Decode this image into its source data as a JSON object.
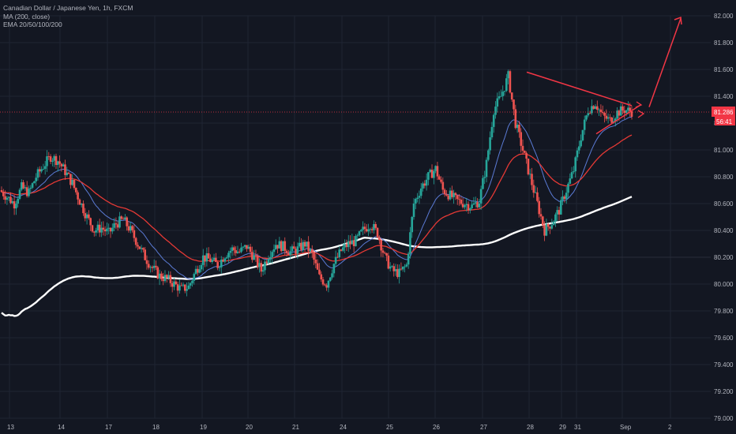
{
  "legend": {
    "symbol": "Canadian Dollar / Japanese Yen, 1h, FXCM",
    "ma": "MA (200, close)",
    "ema": "EMA 20/50/100/200"
  },
  "colors": {
    "background": "#131722",
    "grid": "#1f2433",
    "up": "#26a69a",
    "down": "#ef5350",
    "ma200": "#ffffff",
    "ema_red": "#e53935",
    "ema_blue": "#5b7bd5",
    "annotation": "#f23645",
    "price_badge": "#f23645"
  },
  "chart_data": {
    "type": "candlestick",
    "title": "",
    "ylim": [
      79.0,
      82.1
    ],
    "yticks": [
      "82.000",
      "81.800",
      "81.600",
      "81.400",
      "81.200",
      "81.000",
      "80.800",
      "80.600",
      "80.400",
      "80.200",
      "80.000",
      "79.800",
      "79.600",
      "79.400",
      "79.200",
      "79.000"
    ],
    "xticks": [
      "13",
      "14",
      "17",
      "18",
      "19",
      "20",
      "21",
      "24",
      "25",
      "26",
      "27",
      "28",
      "29",
      "31",
      "Sep",
      "2"
    ],
    "last_price": "81.286",
    "countdown": "56:41",
    "level_line": 80.2,
    "series_close": [
      80.7,
      80.65,
      80.6,
      80.72,
      80.68,
      80.8,
      80.88,
      80.95,
      80.92,
      80.84,
      80.75,
      80.62,
      80.5,
      80.4,
      80.42,
      80.38,
      80.45,
      80.48,
      80.4,
      80.3,
      80.2,
      80.12,
      80.06,
      80.04,
      80.0,
      79.96,
      79.98,
      80.1,
      80.2,
      80.18,
      80.14,
      80.22,
      80.26,
      80.24,
      80.28,
      80.2,
      80.1,
      80.22,
      80.3,
      80.28,
      80.24,
      80.26,
      80.3,
      80.22,
      80.05,
      80.0,
      80.15,
      80.25,
      80.3,
      80.32,
      80.4,
      80.45,
      80.38,
      80.2,
      80.1,
      80.08,
      80.14,
      80.6,
      80.72,
      80.8,
      80.86,
      80.7,
      80.66,
      80.62,
      80.6,
      80.58,
      80.62,
      80.9,
      81.3,
      81.4,
      81.55,
      81.2,
      81.0,
      80.8,
      80.6,
      80.4,
      80.46,
      80.55,
      80.7,
      80.85,
      81.1,
      81.3,
      81.35,
      81.25,
      81.22,
      81.28,
      81.3,
      81.286
    ],
    "annotations": {
      "triangle_top": [
        [
          27.9,
          81.58
        ],
        [
          31.55,
          81.33
        ]
      ],
      "triangle_bottom": [
        [
          30.4,
          81.12
        ],
        [
          31.55,
          81.28
        ]
      ],
      "arrow_up": [
        [
          31.5,
          81.32
        ],
        [
          32.0,
          81.98
        ]
      ]
    }
  }
}
